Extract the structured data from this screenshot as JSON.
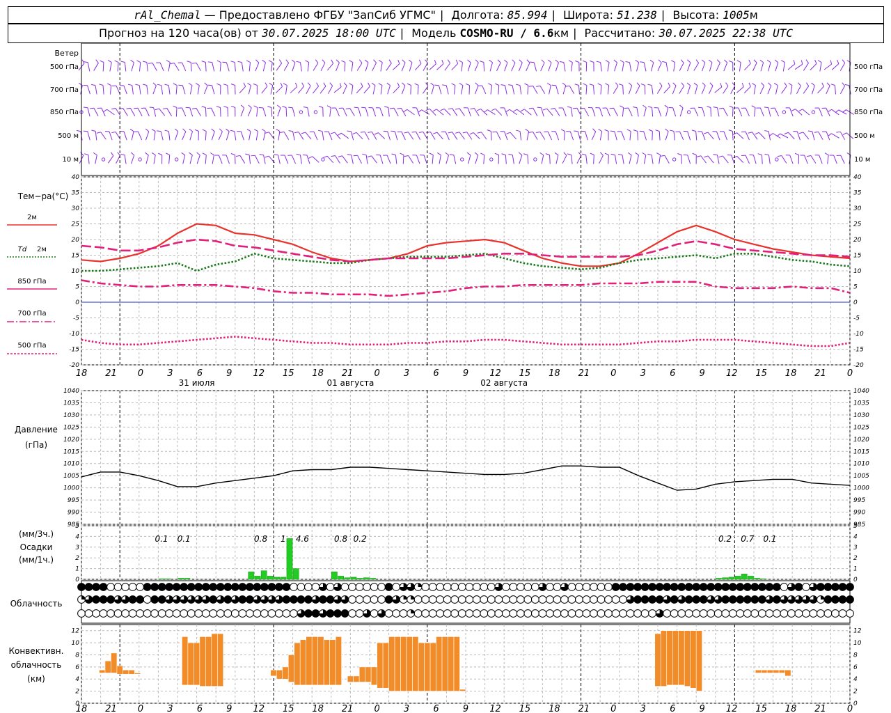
{
  "header": {
    "station": "rAl_Chemal",
    "dash": "—",
    "provider": "Предоставлено ФГБУ \"ЗапСиб УГМС\"",
    "lon_label": "Долгота:",
    "lon_value": "85.994",
    "lat_label": "Широта:",
    "lat_value": "51.238",
    "alt_label": "Высота:",
    "alt_value": "1005",
    "alt_unit": "м",
    "forecast_label": "Прогноз на 120 часа(ов) от",
    "forecast_from": "30.07.2025 18:00 UTC",
    "model_label": "Модель",
    "model_value": "COSMO-RU / 6.6",
    "model_unit": "км",
    "computed_label": "Рассчитано:",
    "computed_value": "30.07.2025 22:38 UTC"
  },
  "time_axis": {
    "hour_labels": [
      "18",
      "21",
      "0",
      "3",
      "6",
      "9",
      "12",
      "15",
      "18",
      "21",
      "0",
      "3",
      "6",
      "9",
      "12",
      "15",
      "18",
      "21",
      "0",
      "3",
      "6",
      "9",
      "12",
      "15",
      "18",
      "21",
      "0"
    ],
    "date_labels": [
      "31 июля",
      "01 августа",
      "02 августа"
    ]
  },
  "wind_panel": {
    "title": "Ветер",
    "levels": [
      "500 гПа",
      "700 гПа",
      "850 гПа",
      "500 м",
      "10 м"
    ],
    "color": "#8a2be2"
  },
  "labels": {
    "temp_title": "Тем−ра(°С)",
    "temp_2m": "2м",
    "td_label": "Td",
    "td_2m": "2м",
    "t850": "850 гПа",
    "t700": "700 гПа",
    "t500": "500 гПа",
    "pressure_title": "Давление",
    "pressure_unit": "(гПа)",
    "precip_unit1": "(мм/3ч.)",
    "precip_title": "Осадки",
    "precip_unit2": "(мм/1ч.)",
    "cloud_title": "Облачность",
    "conv_title1": "Конвективн.",
    "conv_title2": "облачность",
    "conv_unit": "(км)"
  },
  "chart_data": [
    {
      "type": "line",
      "name": "temperature",
      "hours": [
        0,
        3,
        6,
        9,
        12,
        15,
        18,
        21,
        24,
        27,
        30,
        33,
        36,
        39,
        42,
        45,
        48,
        51,
        54,
        57,
        60,
        63,
        66,
        69,
        72,
        75,
        78,
        81,
        84,
        87,
        90,
        93,
        96,
        99,
        102,
        105,
        108,
        111,
        114,
        117,
        120
      ],
      "ylim": [
        -20,
        40
      ],
      "yticks": [
        -20,
        -15,
        -10,
        -5,
        0,
        5,
        10,
        15,
        20,
        25,
        30,
        35,
        40
      ],
      "series": [
        {
          "name": "2м",
          "color": "#e8322c",
          "style": "solid",
          "values": [
            13.5,
            13,
            14,
            15.5,
            18,
            22,
            25,
            24.5,
            22,
            21.5,
            20,
            18.5,
            16,
            14,
            13,
            13.5,
            14,
            15.5,
            18,
            19,
            19.5,
            20,
            19,
            16.5,
            14,
            12.5,
            11.5,
            11.5,
            12.5,
            15.5,
            19,
            22.5,
            24.5,
            22.5,
            20,
            18.5,
            17,
            16,
            15,
            14.5,
            14
          ]
        },
        {
          "name": "Td 2м",
          "color": "#1a7a1a",
          "style": "dotted",
          "values": [
            10,
            10,
            10.5,
            11,
            11.5,
            12.5,
            10,
            12,
            13,
            15.5,
            14,
            13.5,
            13,
            12.5,
            12.5,
            13.5,
            14,
            14.5,
            14.5,
            14.5,
            15,
            15.5,
            14,
            12.5,
            11.5,
            11,
            10.5,
            11,
            12.5,
            13.5,
            14,
            14.5,
            15,
            14,
            15.5,
            15.5,
            14.5,
            13.5,
            13,
            12,
            11.5
          ]
        },
        {
          "name": "850 гПа",
          "color": "#e0207a",
          "style": "dash",
          "values": [
            18,
            17.5,
            16.5,
            16.5,
            17.5,
            19,
            20,
            19.5,
            18,
            17.5,
            16.5,
            15.5,
            14.5,
            13.5,
            13,
            13.5,
            14,
            14,
            14,
            14,
            14.5,
            15,
            15.5,
            15.5,
            15,
            14.5,
            14.5,
            14.5,
            14.5,
            15,
            16.5,
            18.5,
            19.5,
            18.5,
            17,
            16.5,
            16,
            15.5,
            15,
            15,
            14.5
          ]
        },
        {
          "name": "700 гПа",
          "color": "#e0207a",
          "style": "dashdot",
          "values": [
            7,
            6,
            5.5,
            5,
            5,
            5.5,
            5.5,
            5.5,
            5,
            4.5,
            3.5,
            3,
            3,
            2.5,
            2.5,
            2.5,
            2,
            2.5,
            3,
            3.5,
            4.5,
            5,
            5,
            5.5,
            5.5,
            5.5,
            5.5,
            6,
            6,
            6,
            6.5,
            6.5,
            6.5,
            5,
            4.5,
            4.5,
            4.5,
            5,
            4.5,
            4.5,
            3
          ]
        },
        {
          "name": "500 гПа",
          "color": "#e0207a",
          "style": "dotted",
          "values": [
            -12,
            -13,
            -13.5,
            -13.5,
            -13,
            -12.5,
            -12,
            -11.5,
            -11,
            -11.5,
            -12,
            -12.5,
            -13,
            -13,
            -13.5,
            -13.5,
            -13.5,
            -13,
            -13,
            -12.5,
            -12.5,
            -12,
            -12,
            -12.5,
            -13,
            -13.5,
            -13.5,
            -13.5,
            -13.5,
            -13,
            -12.5,
            -12.5,
            -12,
            -12,
            -12,
            -12.5,
            -13,
            -13.5,
            -14,
            -14,
            -13
          ]
        }
      ]
    },
    {
      "type": "line",
      "name": "pressure",
      "hours": [
        0,
        3,
        6,
        9,
        12,
        15,
        18,
        21,
        24,
        27,
        30,
        33,
        36,
        39,
        42,
        45,
        48,
        51,
        54,
        57,
        60,
        63,
        66,
        69,
        72,
        75,
        78,
        81,
        84,
        87,
        90,
        93,
        96,
        99,
        102,
        105,
        108,
        111,
        114,
        117,
        120
      ],
      "ylim": [
        985,
        1040
      ],
      "yticks": [
        985,
        990,
        995,
        1000,
        1005,
        1010,
        1015,
        1020,
        1025,
        1030,
        1035,
        1040
      ],
      "series": [
        {
          "name": "Давление",
          "color": "#000000",
          "style": "solid",
          "values": [
            1004.5,
            1006.5,
            1006.5,
            1005,
            1003,
            1000.5,
            1000.5,
            1002,
            1003,
            1004,
            1005,
            1007,
            1007.5,
            1007.5,
            1008.5,
            1008.5,
            1008,
            1007.5,
            1007,
            1006.5,
            1006,
            1005.5,
            1005.5,
            1006,
            1007.5,
            1009,
            1009,
            1008.5,
            1008.5,
            1005,
            1002,
            999,
            999.5,
            1001.5,
            1002.5,
            1003,
            1003.5,
            1003.5,
            1002,
            1001.5,
            1001
          ]
        }
      ]
    },
    {
      "type": "bar",
      "name": "precipitation",
      "ylim": [
        0,
        5
      ],
      "yticks": [
        0,
        1,
        2,
        3,
        4,
        5
      ],
      "color": "#22cc22",
      "labels_3h": [
        {
          "hour": 12.5,
          "text": "0.1"
        },
        {
          "hour": 16,
          "text": "0.1"
        },
        {
          "hour": 28,
          "text": "0.8"
        },
        {
          "hour": 31.5,
          "text": "1"
        },
        {
          "hour": 34.5,
          "text": "4.6"
        },
        {
          "hour": 40.5,
          "text": "0.8"
        },
        {
          "hour": 43.5,
          "text": "0.2"
        },
        {
          "hour": 100.5,
          "text": "0.2"
        },
        {
          "hour": 104,
          "text": "0.7"
        },
        {
          "hour": 107.5,
          "text": "0.1"
        }
      ],
      "bars_1h": [
        [
          12,
          0.05
        ],
        [
          13,
          0.05
        ],
        [
          15,
          0.1
        ],
        [
          16,
          0.1
        ],
        [
          26,
          0.7
        ],
        [
          27,
          0.3
        ],
        [
          28,
          0.8
        ],
        [
          29,
          0.3
        ],
        [
          30,
          0.2
        ],
        [
          31,
          0.2
        ],
        [
          32,
          3.8
        ],
        [
          33,
          1.0
        ],
        [
          39,
          0.7
        ],
        [
          40,
          0.3
        ],
        [
          41,
          0.15
        ],
        [
          42,
          0.2
        ],
        [
          43,
          0.1
        ],
        [
          44,
          0.15
        ],
        [
          45,
          0.1
        ],
        [
          99,
          0.1
        ],
        [
          100,
          0.15
        ],
        [
          101,
          0.2
        ],
        [
          102,
          0.3
        ],
        [
          103,
          0.5
        ],
        [
          104,
          0.3
        ],
        [
          105,
          0.1
        ],
        [
          106,
          0.05
        ]
      ]
    },
    {
      "type": "table",
      "name": "cloudiness",
      "rows": [
        "3333000003333333333333333333300002020000003022100000000002000002002000000333333333333333333333330230233333",
        "1233322330332222223232332222333323322000003211000000000000000000000000000002333323233322333333232222213333",
        "0000000000000000000000000000002332333002020001000000000000000000000000000000000200000000000000000000000000"
      ]
    },
    {
      "type": "bar",
      "name": "convective_cloud",
      "ylim": [
        0,
        13
      ],
      "yticks": [
        0,
        2,
        4,
        6,
        8,
        10,
        12
      ],
      "color": "#f28c28",
      "bars": [
        [
          3,
          4,
          5,
          5.5
        ],
        [
          4,
          5,
          5,
          7
        ],
        [
          5,
          6,
          5,
          8.3
        ],
        [
          6,
          7,
          4.8,
          6.2
        ],
        [
          7,
          8,
          4.8,
          5.5
        ],
        [
          8,
          9,
          4.8,
          5.5
        ],
        [
          9,
          10,
          4.8,
          5
        ],
        [
          17,
          18,
          3,
          11
        ],
        [
          18,
          19,
          3,
          10
        ],
        [
          19,
          20,
          3,
          10
        ],
        [
          20,
          21,
          2.8,
          11
        ],
        [
          21,
          22,
          2.8,
          11
        ],
        [
          22,
          23,
          2.8,
          11.5
        ],
        [
          23,
          24,
          2.8,
          11.5
        ],
        [
          32,
          33,
          4.5,
          5.5
        ],
        [
          33,
          34,
          4,
          5.5
        ],
        [
          34,
          35,
          4,
          6
        ],
        [
          35,
          36,
          3.5,
          8
        ],
        [
          36,
          37,
          3,
          10
        ],
        [
          37,
          38,
          3,
          10.5
        ],
        [
          38,
          39,
          3,
          11
        ],
        [
          39,
          40,
          3,
          11
        ],
        [
          40,
          41,
          3,
          11
        ],
        [
          41,
          42,
          3,
          10.5
        ],
        [
          42,
          43,
          3,
          10.5
        ],
        [
          43,
          44,
          3,
          11
        ],
        [
          45,
          46,
          3.5,
          4.5
        ],
        [
          46,
          47,
          3.5,
          4.5
        ],
        [
          47,
          48,
          3.5,
          6
        ],
        [
          48,
          49,
          3.5,
          6
        ],
        [
          49,
          50,
          3,
          6
        ],
        [
          50,
          51,
          2.5,
          10
        ],
        [
          51,
          52,
          2.5,
          10
        ],
        [
          52,
          53,
          2,
          11
        ],
        [
          53,
          54,
          2,
          11
        ],
        [
          54,
          55,
          2,
          11
        ],
        [
          55,
          56,
          2,
          11
        ],
        [
          56,
          57,
          2,
          11
        ],
        [
          57,
          58,
          2,
          10
        ],
        [
          58,
          59,
          2,
          10
        ],
        [
          59,
          60,
          2,
          10
        ],
        [
          60,
          61,
          2,
          11
        ],
        [
          61,
          62,
          2,
          11
        ],
        [
          62,
          63,
          2,
          11
        ],
        [
          63,
          64,
          2,
          11
        ],
        [
          64,
          65,
          2,
          2.3
        ],
        [
          97,
          98,
          2.8,
          11.5
        ],
        [
          98,
          99,
          2.8,
          12
        ],
        [
          99,
          100,
          3,
          12
        ],
        [
          100,
          101,
          3,
          12
        ],
        [
          101,
          102,
          3,
          12
        ],
        [
          102,
          103,
          2.8,
          12
        ],
        [
          103,
          104,
          2.5,
          12
        ],
        [
          104,
          105,
          2,
          12
        ],
        [
          114,
          115,
          5,
          5.5
        ],
        [
          115,
          116,
          5,
          5.5
        ],
        [
          116,
          117,
          5,
          5.5
        ],
        [
          117,
          118,
          5,
          5.5
        ],
        [
          118,
          119,
          5,
          5.5
        ],
        [
          119,
          120,
          4.5,
          5.5
        ]
      ]
    }
  ]
}
